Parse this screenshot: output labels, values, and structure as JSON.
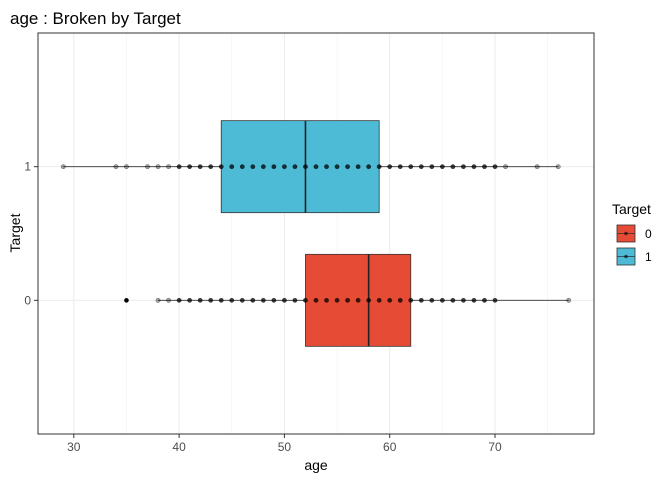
{
  "chart_data": {
    "type": "boxplot",
    "title": "age : Broken by Target",
    "xlabel": "age",
    "ylabel": "Target",
    "xlim": [
      26.6,
      79.4
    ],
    "x_ticks": [
      30,
      40,
      50,
      60,
      70
    ],
    "categories": [
      "0",
      "1"
    ],
    "grid": true,
    "legend_title": "Target",
    "legend_position": "right",
    "legend": [
      {
        "label": "0",
        "color": "#E64B35"
      },
      {
        "label": "1",
        "color": "#4DBBD5"
      }
    ],
    "series": [
      {
        "name": "0",
        "color": "#E64B35",
        "whisker_low": 38,
        "q1": 52,
        "median": 58,
        "q3": 62,
        "whisker_high": 77,
        "outliers": [
          35
        ],
        "points": [
          38,
          39,
          40,
          41,
          42,
          43,
          44,
          45,
          46,
          47,
          48,
          49,
          50,
          51,
          52,
          53,
          54,
          55,
          56,
          57,
          58,
          59,
          60,
          61,
          62,
          63,
          64,
          65,
          66,
          67,
          68,
          69,
          70,
          77
        ]
      },
      {
        "name": "1",
        "color": "#4DBBD5",
        "whisker_low": 29,
        "q1": 44,
        "median": 52,
        "q3": 59,
        "whisker_high": 76,
        "outliers": [],
        "points": [
          29,
          34,
          35,
          37,
          38,
          39,
          40,
          41,
          42,
          43,
          44,
          45,
          46,
          47,
          48,
          49,
          50,
          51,
          52,
          53,
          54,
          55,
          56,
          57,
          58,
          59,
          60,
          61,
          62,
          63,
          64,
          65,
          66,
          67,
          68,
          69,
          70,
          71,
          74,
          76
        ]
      }
    ]
  }
}
